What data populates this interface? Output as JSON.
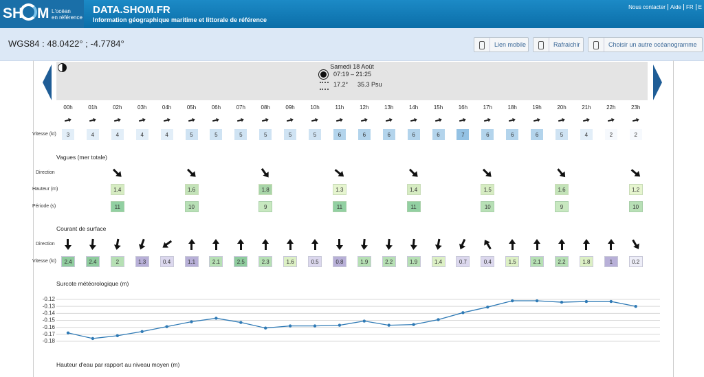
{
  "header": {
    "logo_left": "SH",
    "logo_right": "M",
    "tagline": [
      "L'océan",
      "en référence"
    ],
    "site": "DATA.SHOM.FR",
    "subtitle": "Information géographique maritime et littorale de référence",
    "nav": [
      "Nous contacter",
      "Aide",
      "FR",
      "E"
    ]
  },
  "toolbar": {
    "coords": "WGS84 : 48.0422° ; -4.7784°",
    "buttons": [
      "Lien mobile",
      "Rafraichir",
      "Choisir un autre océanogramme"
    ]
  },
  "day": {
    "date": "Samedi 18 Août",
    "sun": "07:19 – 21:25",
    "water_temp": "17.2°",
    "salinity": "35.3 Psu"
  },
  "hours": [
    "00h",
    "01h",
    "02h",
    "03h",
    "04h",
    "05h",
    "06h",
    "07h",
    "08h",
    "09h",
    "10h",
    "11h",
    "12h",
    "13h",
    "14h",
    "15h",
    "16h",
    "17h",
    "18h",
    "19h",
    "20h",
    "21h",
    "22h",
    "23h"
  ],
  "wind": {
    "label": "Vitesse (kt)",
    "values": [
      3,
      4,
      4,
      4,
      4,
      5,
      5,
      5,
      5,
      5,
      5,
      6,
      6,
      6,
      6,
      6,
      7,
      6,
      6,
      6,
      5,
      4,
      2,
      2
    ]
  },
  "waves": {
    "title": "Vagues (mer totale)",
    "labels": [
      "Direction",
      "Hauteur (m)",
      "Période (s)"
    ],
    "height": [
      1.4,
      1.6,
      1.8,
      1.3,
      1.4,
      1.5,
      1.6,
      1.2
    ],
    "period": [
      11,
      10,
      9,
      11,
      11,
      10,
      9,
      10
    ]
  },
  "current": {
    "title": "Courant de surface",
    "labels": [
      "Direction",
      "Vitesse (kt)"
    ],
    "values": [
      2.4,
      2.4,
      2,
      1.3,
      0.4,
      1.1,
      2.1,
      2.5,
      2.3,
      1.6,
      0.5,
      0.8,
      1.9,
      2.2,
      1.9,
      1.4,
      0.7,
      0.4,
      1.5,
      2.1,
      2.2,
      1.8,
      1,
      0.2
    ]
  },
  "chart_data": {
    "type": "line",
    "title": "Surcote météorologique (m)",
    "series": [
      {
        "name": "Surcote",
        "color": "#2f7ab5",
        "values": [
          -0.168,
          -0.176,
          -0.172,
          -0.166,
          -0.159,
          -0.152,
          -0.147,
          -0.153,
          -0.161,
          -0.158,
          -0.158,
          -0.157,
          -0.151,
          -0.157,
          -0.156,
          -0.149,
          -0.139,
          -0.131,
          -0.122,
          -0.122,
          -0.124,
          -0.123,
          -0.123,
          -0.13
        ]
      }
    ],
    "ylim": [
      -0.18,
      -0.12
    ],
    "yticks": [
      -0.12,
      -0.13,
      -0.14,
      -0.15,
      -0.16,
      -0.17,
      -0.18
    ],
    "grid": true
  },
  "next_title": "Hauteur d'eau par rapport au niveau moyen (m)"
}
